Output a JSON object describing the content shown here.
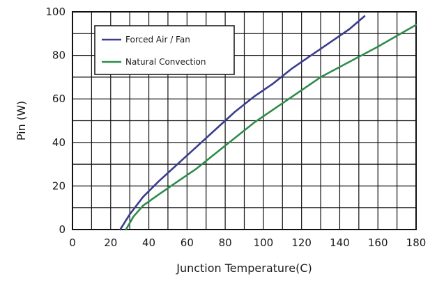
{
  "chart_data": {
    "type": "line",
    "xlabel": "Junction Temperature(C)",
    "ylabel": "Pin (W)",
    "xlim": [
      0,
      180
    ],
    "ylim": [
      0,
      100
    ],
    "xticks": [
      "0",
      "20",
      "40",
      "60",
      "80",
      "100",
      "120",
      "140",
      "160",
      "180"
    ],
    "yticks": [
      "0",
      "20",
      "40",
      "60",
      "80",
      "100"
    ],
    "grid": true,
    "legend_position": "top-left",
    "series": [
      {
        "name": "Forced Air / Fan",
        "color": "#3b3c8f",
        "x": [
          25,
          30,
          37,
          45,
          55,
          65,
          75,
          85,
          95,
          105,
          115,
          125,
          135,
          145,
          153
        ],
        "y": [
          0,
          7,
          15,
          22,
          30,
          38,
          46,
          54,
          61,
          67,
          74,
          80,
          86,
          92,
          98
        ]
      },
      {
        "name": "Natural Convection",
        "color": "#2e8b4a",
        "x": [
          28,
          32,
          37,
          45,
          55,
          65,
          75,
          85,
          95,
          105,
          115,
          130,
          145,
          160,
          170,
          180
        ],
        "y": [
          0,
          6,
          11,
          16,
          22,
          28,
          35,
          42,
          49,
          55,
          61,
          70,
          77,
          84,
          89,
          94
        ]
      }
    ]
  }
}
